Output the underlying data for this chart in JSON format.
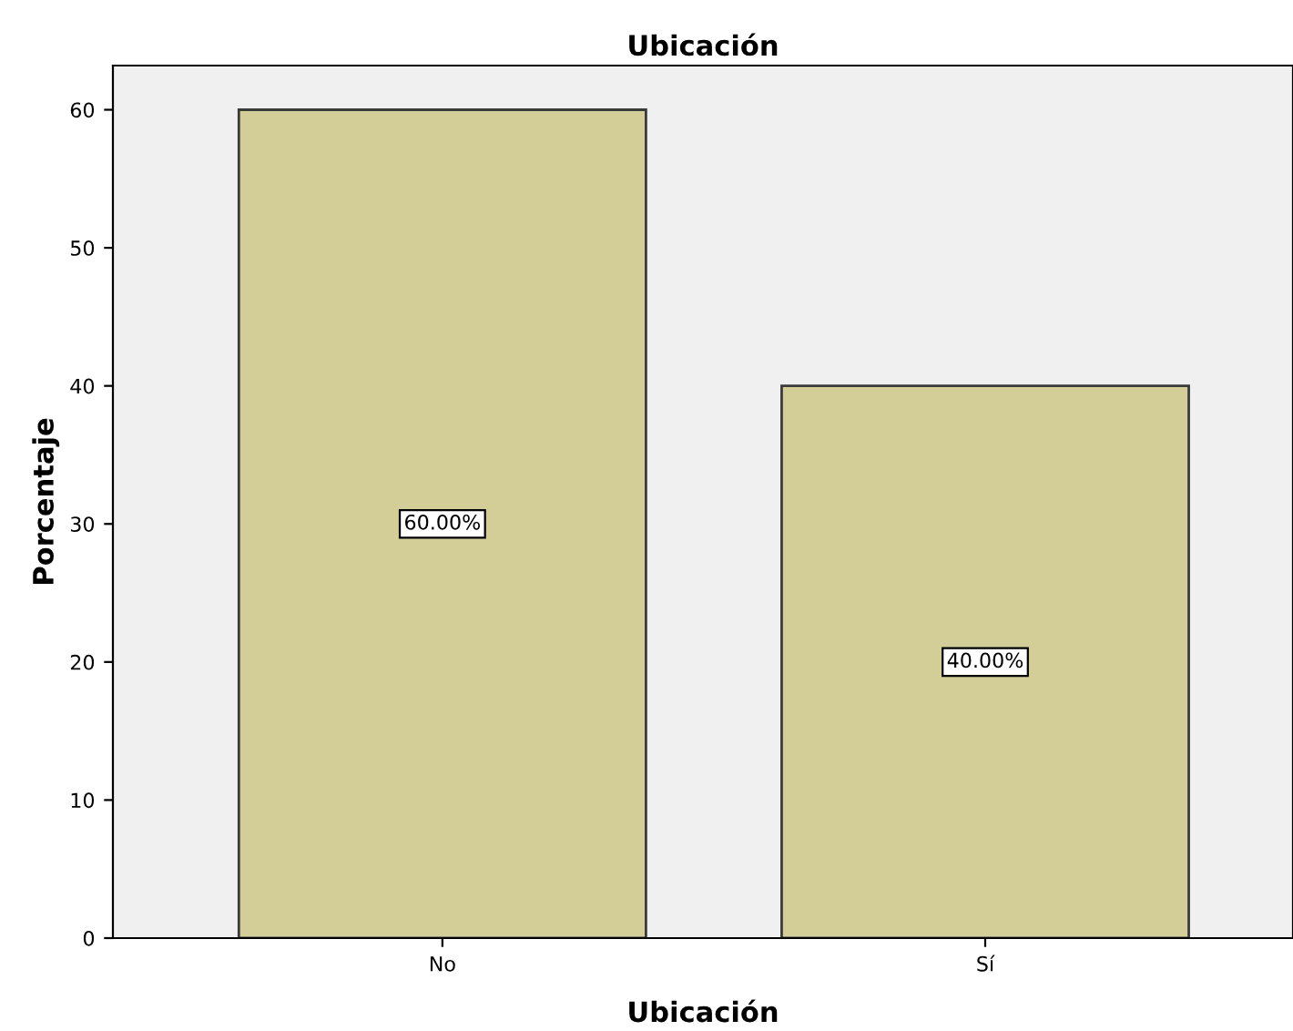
{
  "chart_data": {
    "type": "bar",
    "title": "Ubicación",
    "xlabel": "Ubicación",
    "ylabel": "Porcentaje",
    "categories": [
      "No",
      "Sí"
    ],
    "values": [
      60,
      40
    ],
    "value_labels": [
      "60.00%",
      "40.00%"
    ],
    "color": "#d3ce97",
    "ylim": [
      0,
      63.2
    ],
    "yticks": [
      0,
      10,
      20,
      30,
      40,
      50,
      60
    ],
    "grid": false,
    "legend": false
  }
}
